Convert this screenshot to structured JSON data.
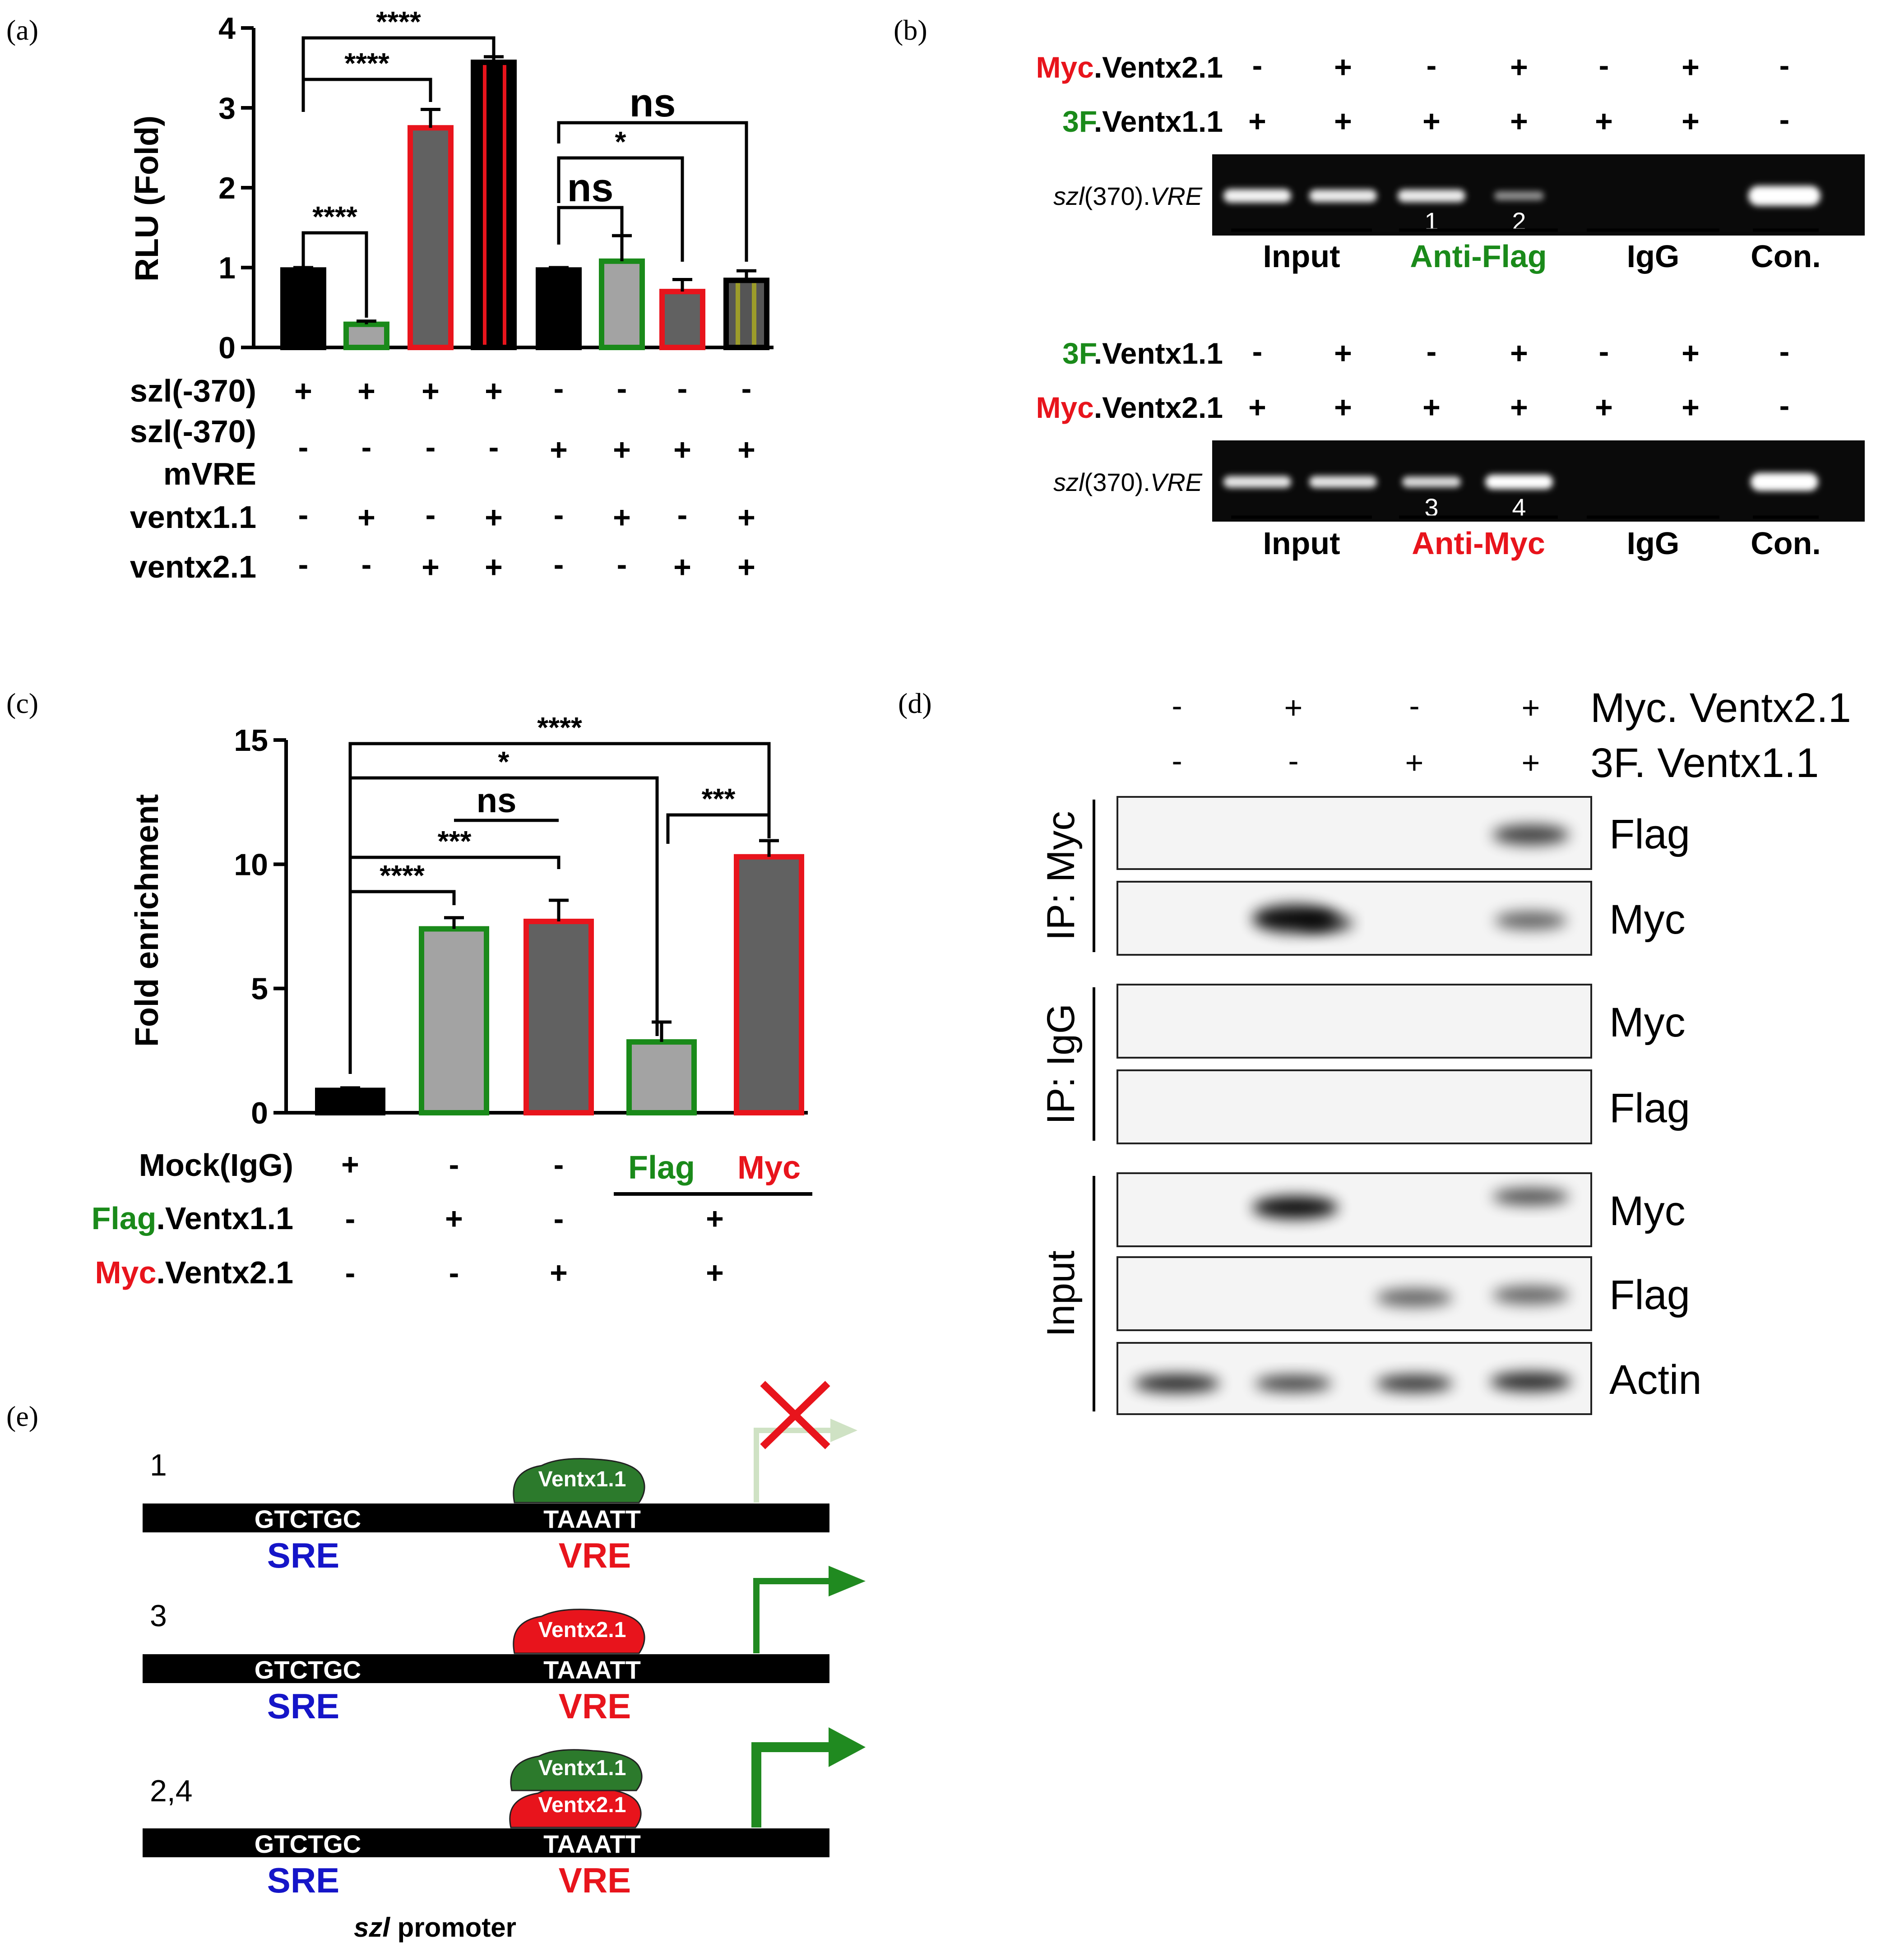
{
  "colors": {
    "black": "#000000",
    "light_gray": "#a3a3a3",
    "dark_gray": "#616161",
    "green": "#1a8a1a",
    "red": "#e8141c",
    "blue": "#1515c8",
    "olive": "#7a7a1e",
    "dark_green": "#2c7a2c",
    "arrow_green": "#208a20",
    "faded_green": "#cfe2c4",
    "gel_bg": "#0a0a0a",
    "blot_bg": "#f4f4f4"
  },
  "panel_a": {
    "label": "(a)",
    "chart_data": {
      "type": "bar",
      "ylabel": "RLU (Fold)",
      "ylim": [
        0,
        4
      ],
      "yticks": [
        "0",
        "1",
        "2",
        "3",
        "4"
      ],
      "bars": [
        {
          "value": 0.97,
          "error": 0.03,
          "fill": "black",
          "edge": "black"
        },
        {
          "value": 0.29,
          "error": 0.04,
          "fill": "light_gray",
          "edge": "green"
        },
        {
          "value": 2.75,
          "error": 0.23,
          "fill": "dark_gray",
          "edge": "red"
        },
        {
          "value": 3.57,
          "error": 0.07,
          "fill": "black",
          "edge": "black",
          "stripes": "red"
        },
        {
          "value": 0.97,
          "error": 0.03,
          "fill": "black",
          "edge": "black"
        },
        {
          "value": 1.08,
          "error": 0.32,
          "fill": "light_gray",
          "edge": "green"
        },
        {
          "value": 0.7,
          "error": 0.15,
          "fill": "dark_gray",
          "edge": "red"
        },
        {
          "value": 0.84,
          "error": 0.12,
          "fill": "dark_gray",
          "edge": "black",
          "stripes": "olive"
        }
      ],
      "significance": [
        {
          "from": 0,
          "to": 3,
          "label": "****"
        },
        {
          "from": 0,
          "to": 2,
          "label": "****"
        },
        {
          "from": 0,
          "to": 1,
          "label": "****"
        },
        {
          "from": 4,
          "to": 7,
          "label": "ns"
        },
        {
          "from": 4,
          "to": 6,
          "label": "*"
        },
        {
          "from": 4,
          "to": 5,
          "label": "ns"
        }
      ],
      "conditions": [
        {
          "label": "szl(-370)",
          "values": [
            "+",
            "+",
            "+",
            "+",
            "-",
            "-",
            "-",
            "-"
          ]
        },
        {
          "label": "szl(-370)",
          "label2": "mVRE",
          "values": [
            "-",
            "-",
            "-",
            "-",
            "+",
            "+",
            "+",
            "+"
          ]
        },
        {
          "label": "ventx1.1",
          "values": [
            "-",
            "+",
            "-",
            "+",
            "-",
            "+",
            "-",
            "+"
          ]
        },
        {
          "label": "ventx2.1",
          "values": [
            "-",
            "-",
            "+",
            "+",
            "-",
            "-",
            "+",
            "+"
          ]
        }
      ]
    }
  },
  "panel_b": {
    "label": "(b)",
    "top": {
      "rows": [
        {
          "prefix": "Myc",
          "prefix_color": "red",
          "suffix": ".Ventx2.1",
          "values": [
            "-",
            "+",
            "-",
            "+",
            "-",
            "+",
            "-"
          ]
        },
        {
          "prefix": "3F",
          "prefix_color": "green",
          "suffix": ".Ventx1.1",
          "values": [
            "+",
            "+",
            "+",
            "+",
            "+",
            "+",
            "-"
          ]
        }
      ],
      "gel_label_italic": "szl",
      "gel_label_rest": "(370).",
      "gel_label_end": "VRE",
      "lane_numbers": [
        {
          "lane": 2,
          "text": "1"
        },
        {
          "lane": 3,
          "text": "2"
        }
      ],
      "groups": [
        {
          "text": "Input",
          "color": "black"
        },
        {
          "text": "Anti-Flag",
          "color": "green"
        },
        {
          "text": "IgG",
          "color": "black"
        },
        {
          "text": "Con.",
          "color": "black"
        }
      ]
    },
    "bottom": {
      "rows": [
        {
          "prefix": "3F",
          "prefix_color": "green",
          "suffix": ".Ventx1.1",
          "values": [
            "-",
            "+",
            "-",
            "+",
            "-",
            "+",
            "-"
          ]
        },
        {
          "prefix": "Myc",
          "prefix_color": "red",
          "suffix": ".Ventx2.1",
          "values": [
            "+",
            "+",
            "+",
            "+",
            "+",
            "+",
            "-"
          ]
        }
      ],
      "gel_label_italic": "szl",
      "gel_label_rest": "(370).",
      "gel_label_end": "VRE",
      "lane_numbers": [
        {
          "lane": 2,
          "text": "3"
        },
        {
          "lane": 3,
          "text": "4"
        }
      ],
      "groups": [
        {
          "text": "Input",
          "color": "black"
        },
        {
          "text": "Anti-Myc",
          "color": "red"
        },
        {
          "text": "IgG",
          "color": "black"
        },
        {
          "text": "Con.",
          "color": "black"
        }
      ]
    }
  },
  "panel_c": {
    "label": "(c)",
    "chart_data": {
      "type": "bar",
      "ylabel": "Fold enrichment",
      "ylim": [
        0,
        15
      ],
      "yticks": [
        "0",
        "5",
        "10",
        "15"
      ],
      "bars": [
        {
          "value": 0.9,
          "error": 0.1,
          "fill": "black",
          "edge": "black"
        },
        {
          "value": 7.4,
          "error": 0.45,
          "fill": "light_gray",
          "edge": "green"
        },
        {
          "value": 7.7,
          "error": 0.85,
          "fill": "dark_gray",
          "edge": "red"
        },
        {
          "value": 2.85,
          "error": 0.8,
          "fill": "light_gray",
          "edge": "green"
        },
        {
          "value": 10.3,
          "error": 0.65,
          "fill": "dark_gray",
          "edge": "red"
        }
      ],
      "significance": [
        {
          "from": 0,
          "to": 4,
          "label": "****"
        },
        {
          "from": 0,
          "to": 3,
          "label": "*"
        },
        {
          "from": 1,
          "to": 2,
          "label": "ns"
        },
        {
          "from": 0,
          "to": 2,
          "label": "***"
        },
        {
          "from": 0,
          "to": 1,
          "label": "****"
        },
        {
          "from": 3,
          "to": 4,
          "label": "***"
        }
      ],
      "mock_label": "Mock(IgG)",
      "mock_values": [
        "+",
        "-",
        "-"
      ],
      "flag_label": "Flag",
      "myc_label": "Myc",
      "flag_row": {
        "prefix": "Flag",
        "suffix": ".Ventx1.1",
        "values": [
          "-",
          "+",
          "-",
          "+"
        ]
      },
      "myc_row": {
        "prefix": "Myc",
        "suffix": ".Ventx2.1",
        "values": [
          "-",
          "-",
          "+",
          "+"
        ]
      }
    }
  },
  "panel_d": {
    "label": "(d)",
    "header_rows": [
      {
        "label": "Myc. Ventx2.1",
        "values": [
          "-",
          "+",
          "-",
          "+"
        ]
      },
      {
        "label": "3F. Ventx1.1",
        "values": [
          "-",
          "-",
          "+",
          "+"
        ]
      }
    ],
    "groups": [
      {
        "label": "IP: Myc",
        "blots": [
          "Flag",
          "Myc"
        ]
      },
      {
        "label": "IP: IgG",
        "blots": [
          "Myc",
          "Flag"
        ]
      },
      {
        "label": "Input",
        "blots": [
          "Myc",
          "Flag",
          "Actin"
        ]
      }
    ]
  },
  "panel_e": {
    "label": "(e)",
    "promoter_caption_italic": "szl",
    "promoter_caption_rest": " promoter",
    "rows": [
      {
        "id": "1",
        "sre_seq": "GTCTGC",
        "sre": "SRE",
        "vre_seq": "TAAATT",
        "vre": "VRE",
        "proteins": [
          "Ventx1.1"
        ]
      },
      {
        "id": "3",
        "sre_seq": "GTCTGC",
        "sre": "SRE",
        "vre_seq": "TAAATT",
        "vre": "VRE",
        "proteins": [
          "Ventx2.1"
        ]
      },
      {
        "id": "2,4",
        "sre_seq": "GTCTGC",
        "sre": "SRE",
        "vre_seq": "TAAATT",
        "vre": "VRE",
        "proteins": [
          "Ventx1.1",
          "Ventx2.1"
        ]
      }
    ]
  }
}
